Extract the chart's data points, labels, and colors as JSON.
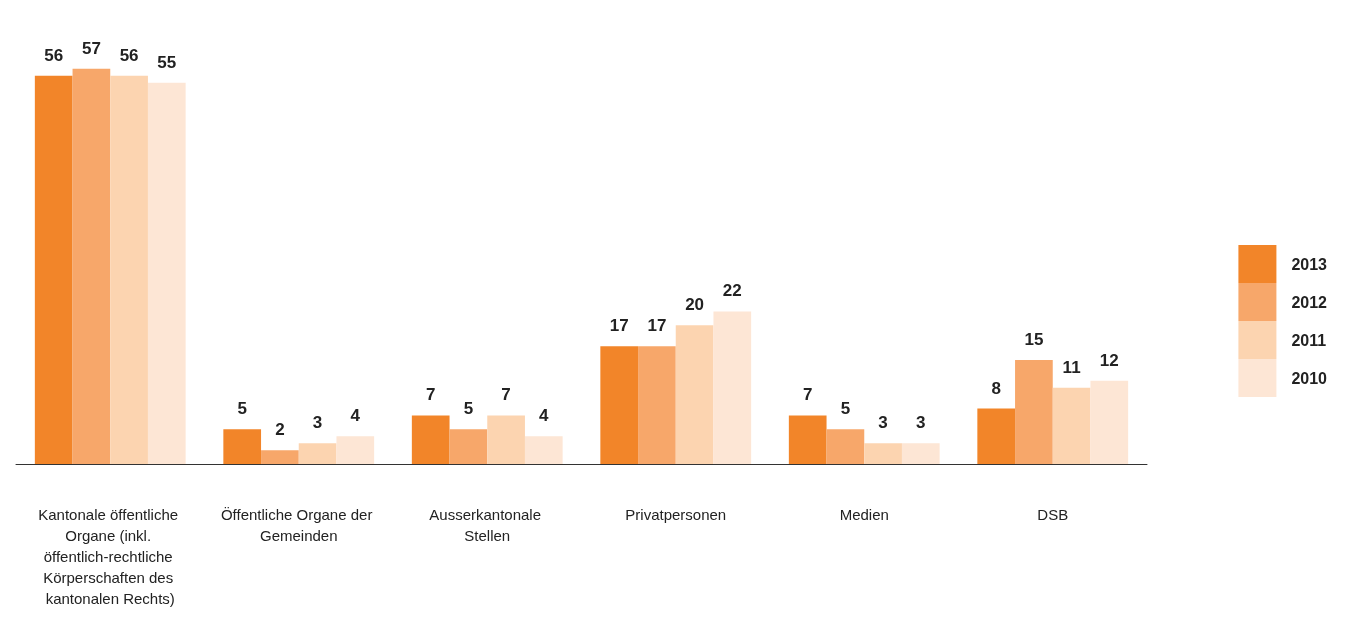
{
  "chart_data": {
    "type": "bar",
    "categories": [
      "Kantonale öffentliche Organe (inkl. öffentlich-rechtliche Körperschaften des kantonalen Rechts)",
      "Öffentliche Organe der Gemeinden",
      "Ausserkantonale Stellen",
      "Privatpersonen",
      "Medien",
      "DSB"
    ],
    "series": [
      {
        "name": "2013",
        "color": "#f28529",
        "values": [
          56,
          5,
          7,
          17,
          7,
          8
        ]
      },
      {
        "name": "2012",
        "color": "#f7a76a",
        "values": [
          57,
          2,
          5,
          17,
          5,
          15
        ]
      },
      {
        "name": "2011",
        "color": "#fcd4b0",
        "values": [
          56,
          3,
          7,
          20,
          3,
          11
        ]
      },
      {
        "name": "2010",
        "color": "#fde6d5",
        "values": [
          55,
          4,
          4,
          22,
          3,
          12
        ]
      }
    ],
    "data_labels": true,
    "legend": "right",
    "grid": false
  }
}
